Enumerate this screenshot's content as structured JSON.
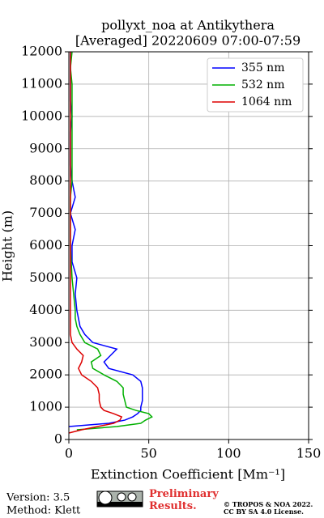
{
  "chart_data": {
    "type": "line",
    "title": "pollyxt_noa at Antikythera",
    "subtitle": "[Averaged] 20220609 07:00-07:59",
    "xlabel": "Extinction Coefficient [Mm⁻¹]",
    "ylabel": "Height (m)",
    "y": [
      0,
      100,
      200,
      300,
      400,
      500,
      600,
      700,
      800,
      900,
      1000,
      1200,
      1400,
      1600,
      1800,
      2000,
      2200,
      2400,
      2600,
      2800,
      3000,
      3250,
      3500,
      3750,
      4000,
      4500,
      5000,
      5500,
      6000,
      6500,
      7000,
      7500,
      8000,
      8500,
      9000,
      9500,
      10000,
      10500,
      11000,
      11500,
      12000
    ],
    "series": [
      {
        "name": "355 nm",
        "color": "#0000ff",
        "values": [
          null,
          null,
          null,
          null,
          0,
          25,
          35,
          40,
          43,
          45,
          45,
          46,
          46,
          46,
          45,
          40,
          25,
          22,
          26,
          30,
          15,
          10,
          7,
          6,
          5,
          4,
          5,
          2,
          2,
          4,
          1,
          4,
          2,
          1,
          1,
          1,
          2,
          1,
          1,
          1,
          1
        ]
      },
      {
        "name": "532 nm",
        "color": "#00b000",
        "values": [
          null,
          null,
          null,
          5,
          30,
          45,
          48,
          52,
          50,
          42,
          36,
          35,
          34,
          34,
          30,
          22,
          15,
          14,
          20,
          18,
          10,
          7,
          5,
          4,
          4,
          3,
          2,
          1.5,
          1,
          1,
          1,
          1,
          2,
          2,
          2,
          2,
          2,
          2,
          2,
          1,
          2
        ]
      },
      {
        "name": "1064 nm",
        "color": "#dd0000",
        "values": [
          null,
          null,
          0,
          8,
          18,
          28,
          32,
          33,
          28,
          22,
          20,
          19,
          19,
          18,
          14,
          8,
          6,
          8,
          9,
          5,
          2,
          1,
          1,
          1,
          1,
          1,
          1,
          1,
          1,
          1,
          1,
          1,
          1,
          1,
          1,
          1,
          1,
          1,
          1,
          1,
          1
        ]
      }
    ],
    "xlim": [
      0,
      150
    ],
    "xticks": [
      0,
      50,
      100,
      150
    ],
    "ylim": [
      0,
      12000
    ],
    "yticks": [
      0,
      1000,
      2000,
      3000,
      4000,
      5000,
      6000,
      7000,
      8000,
      9000,
      10000,
      11000,
      12000
    ],
    "grid": true,
    "legend": "upper right"
  },
  "footer": {
    "version": "Version: 3.5",
    "method": "Method: Klett",
    "status": "Preliminary Results.",
    "copyright": "© TROPOS & NOA 2022.",
    "license": "CC BY SA 4.0 License."
  }
}
